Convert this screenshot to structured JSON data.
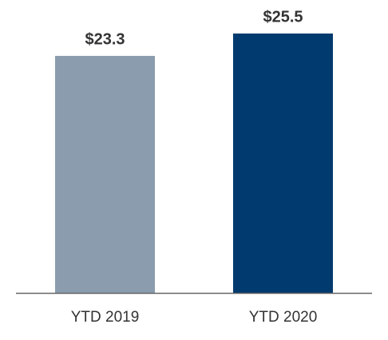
{
  "chart_data": {
    "type": "bar",
    "categories": [
      "YTD 2019",
      "YTD 2020"
    ],
    "values": [
      23.3,
      25.5
    ],
    "value_labels": [
      "$23.3",
      "$25.5"
    ],
    "colors": [
      "#8a9cae",
      "#003a6e"
    ]
  }
}
